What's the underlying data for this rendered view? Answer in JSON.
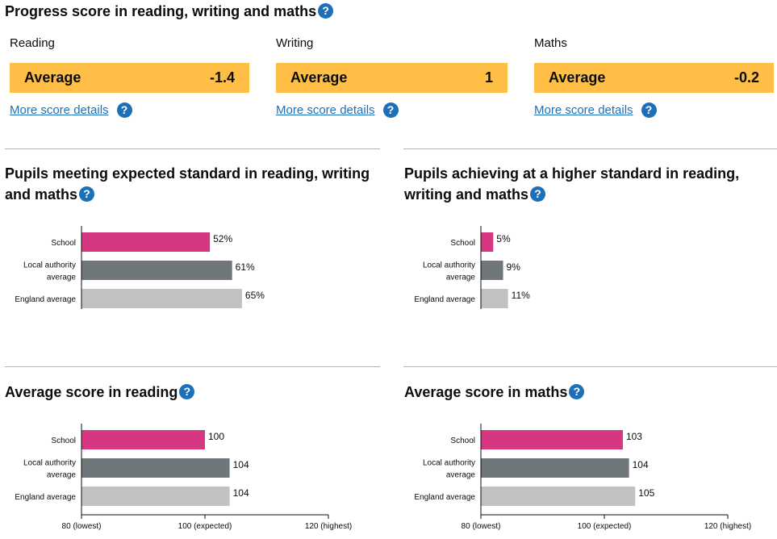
{
  "progress": {
    "title": "Progress score in reading, writing and maths",
    "cards": [
      {
        "subject": "Reading",
        "band": "Average",
        "score": "-1.4",
        "link": "More score details"
      },
      {
        "subject": "Writing",
        "band": "Average",
        "score": "1",
        "link": "More score details"
      },
      {
        "subject": "Maths",
        "band": "Average",
        "score": "-0.2",
        "link": "More score details"
      }
    ],
    "band_color": "#ffbf47"
  },
  "help_icon": "question-mark-icon",
  "colors": {
    "school": "#d53880",
    "local_authority": "#6f777b",
    "england": "#bfc1c3",
    "link": "#1d70b8"
  },
  "chart_data": [
    {
      "type": "bar",
      "title": "Pupils meeting expected standard in reading, writing and maths",
      "categories": [
        [
          "School"
        ],
        [
          "Local authority",
          "average"
        ],
        [
          "England average"
        ]
      ],
      "values": [
        52,
        61,
        65
      ],
      "labels": [
        "52%",
        "61%",
        "65%"
      ],
      "xlim": [
        0,
        100
      ],
      "ticks": []
    },
    {
      "type": "bar",
      "title": "Pupils achieving at a higher standard in reading, writing and maths",
      "categories": [
        [
          "School"
        ],
        [
          "Local authority",
          "average"
        ],
        [
          "England average"
        ]
      ],
      "values": [
        5,
        9,
        11
      ],
      "labels": [
        "5%",
        "9%",
        "11%"
      ],
      "xlim": [
        0,
        100
      ],
      "ticks": []
    },
    {
      "type": "bar",
      "title": "Average score in reading",
      "categories": [
        [
          "School"
        ],
        [
          "Local authority",
          "average"
        ],
        [
          "England average"
        ]
      ],
      "values": [
        100,
        104,
        104
      ],
      "labels": [
        "100",
        "104",
        "104"
      ],
      "xlim": [
        80,
        120
      ],
      "ticks": [
        {
          "value": 80,
          "label": "80 (lowest)"
        },
        {
          "value": 100,
          "label": "100 (expected)"
        },
        {
          "value": 120,
          "label": "120 (highest)"
        }
      ]
    },
    {
      "type": "bar",
      "title": "Average score in maths",
      "categories": [
        [
          "School"
        ],
        [
          "Local authority",
          "average"
        ],
        [
          "England average"
        ]
      ],
      "values": [
        103,
        104,
        105
      ],
      "labels": [
        "103",
        "104",
        "105"
      ],
      "xlim": [
        80,
        120
      ],
      "ticks": [
        {
          "value": 80,
          "label": "80 (lowest)"
        },
        {
          "value": 100,
          "label": "100 (expected)"
        },
        {
          "value": 120,
          "label": "120 (highest)"
        }
      ]
    }
  ]
}
